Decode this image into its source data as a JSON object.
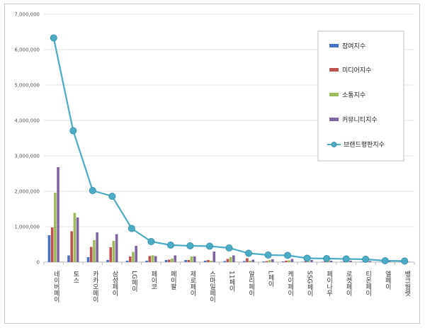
{
  "chart_data": {
    "type": "bar",
    "ylim": [
      0,
      7000000
    ],
    "yticks": [
      0,
      1000000,
      2000000,
      3000000,
      4000000,
      5000000,
      6000000,
      7000000
    ],
    "ytick_labels": [
      "0",
      "1,000,000",
      "2,000,000",
      "3,000,000",
      "4,000,000",
      "5,000,000",
      "6,000,000",
      "7,000,000"
    ],
    "grid": true,
    "legend_position": "top-right",
    "categories": [
      "네이버페이",
      "토스",
      "카카오페이",
      "삼성페이",
      "LG페이",
      "페이코",
      "페이팔",
      "제로페이",
      "스마일페이",
      "11페이",
      "알리페이",
      "L페이",
      "케이페이",
      "SSG페이",
      "페이나우",
      "로켓페이",
      "티몬페이",
      "엘페이",
      "뱅크월렛"
    ],
    "series": [
      {
        "name": "참여지수",
        "color": "#4472c4",
        "values": [
          760000,
          190000,
          140000,
          60000,
          40000,
          40000,
          60000,
          60000,
          40000,
          30000,
          30000,
          20000,
          20000,
          10000,
          10000,
          10000,
          10000,
          10000,
          5000
        ]
      },
      {
        "name": "미디어지수",
        "color": "#c0504d",
        "values": [
          980000,
          870000,
          430000,
          420000,
          160000,
          170000,
          70000,
          60000,
          60000,
          90000,
          110000,
          30000,
          40000,
          30000,
          30000,
          20000,
          20000,
          10000,
          5000
        ]
      },
      {
        "name": "소통지수",
        "color": "#9bbb59",
        "values": [
          1960000,
          1390000,
          620000,
          600000,
          290000,
          190000,
          100000,
          160000,
          40000,
          140000,
          40000,
          60000,
          50000,
          20000,
          20000,
          20000,
          20000,
          10000,
          5000
        ]
      },
      {
        "name": "커뮤니티지수",
        "color": "#8064a2",
        "values": [
          2680000,
          1260000,
          840000,
          790000,
          460000,
          170000,
          190000,
          160000,
          300000,
          190000,
          70000,
          80000,
          90000,
          60000,
          40000,
          40000,
          30000,
          20000,
          10000
        ]
      }
    ],
    "line_series": {
      "name": "브랜드평판지수",
      "color": "#4bacc6",
      "values": [
        6330000,
        3710000,
        2020000,
        1860000,
        950000,
        580000,
        480000,
        460000,
        450000,
        400000,
        250000,
        200000,
        190000,
        110000,
        100000,
        90000,
        80000,
        40000,
        30000
      ]
    }
  }
}
